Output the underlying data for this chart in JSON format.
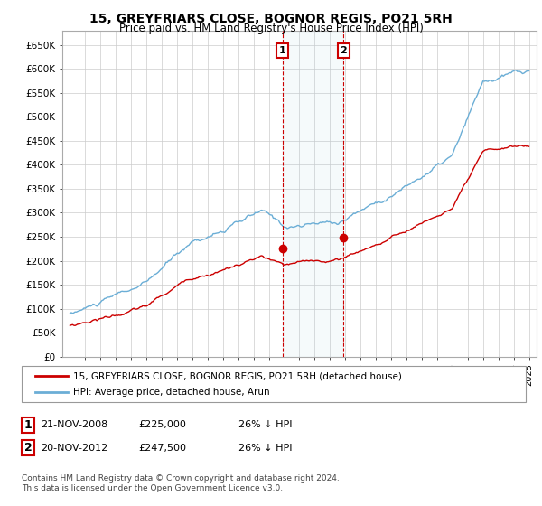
{
  "title": "15, GREYFRIARS CLOSE, BOGNOR REGIS, PO21 5RH",
  "subtitle": "Price paid vs. HM Land Registry's House Price Index (HPI)",
  "ylabel_ticks": [
    "£0",
    "£50K",
    "£100K",
    "£150K",
    "£200K",
    "£250K",
    "£300K",
    "£350K",
    "£400K",
    "£450K",
    "£500K",
    "£550K",
    "£600K",
    "£650K"
  ],
  "ytick_values": [
    0,
    50000,
    100000,
    150000,
    200000,
    250000,
    300000,
    350000,
    400000,
    450000,
    500000,
    550000,
    600000,
    650000
  ],
  "hpi_color": "#6baed6",
  "price_color": "#cc0000",
  "transaction1_year": 2008.88,
  "transaction1_price": 225000,
  "transaction2_year": 2012.88,
  "transaction2_price": 247500,
  "legend_line1": "15, GREYFRIARS CLOSE, BOGNOR REGIS, PO21 5RH (detached house)",
  "legend_line2": "HPI: Average price, detached house, Arun",
  "table_row1_date": "21-NOV-2008",
  "table_row1_price": "£225,000",
  "table_row1_pct": "26% ↓ HPI",
  "table_row2_date": "20-NOV-2012",
  "table_row2_price": "£247,500",
  "table_row2_pct": "26% ↓ HPI",
  "footnote": "Contains HM Land Registry data © Crown copyright and database right 2024.\nThis data is licensed under the Open Government Licence v3.0.",
  "background_color": "#ffffff",
  "grid_color": "#cccccc",
  "xlim_left": 1994.5,
  "xlim_right": 2025.5,
  "ylim_bottom": 0,
  "ylim_top": 680000
}
